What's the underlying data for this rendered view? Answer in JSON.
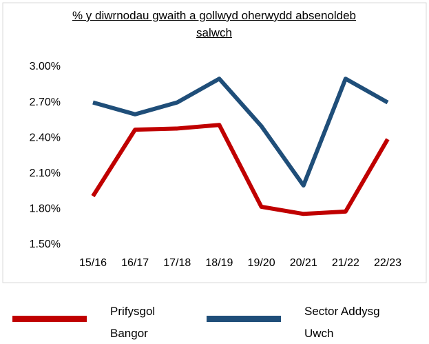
{
  "chart_data": {
    "type": "line",
    "title": "% y diwrnodau gwaith a gollwyd oherwydd absenoldeb salwch",
    "categories": [
      "15/16",
      "16/17",
      "17/18",
      "18/19",
      "19/20",
      "20/21",
      "21/22",
      "22/23"
    ],
    "series": [
      {
        "name": "Prifysgol Bangor",
        "color": "#c00000",
        "values": [
          1.91,
          2.47,
          2.48,
          2.51,
          1.82,
          1.76,
          1.78,
          2.39
        ]
      },
      {
        "name": "Sector Addysg Uwch",
        "color": "#1f4e79",
        "values": [
          2.7,
          2.6,
          2.7,
          2.9,
          2.5,
          2.0,
          2.9,
          2.7
        ]
      }
    ],
    "ylim": [
      1.5,
      3.0
    ],
    "yticks": [
      {
        "value": 1.5,
        "label": "1.50%"
      },
      {
        "value": 1.8,
        "label": "1.80%"
      },
      {
        "value": 2.1,
        "label": "2.10%"
      },
      {
        "value": 2.4,
        "label": "2.40%"
      },
      {
        "value": 2.7,
        "label": "2.70%"
      },
      {
        "value": 3.0,
        "label": "3.00%"
      }
    ],
    "grid": false,
    "legend": "bottom"
  }
}
